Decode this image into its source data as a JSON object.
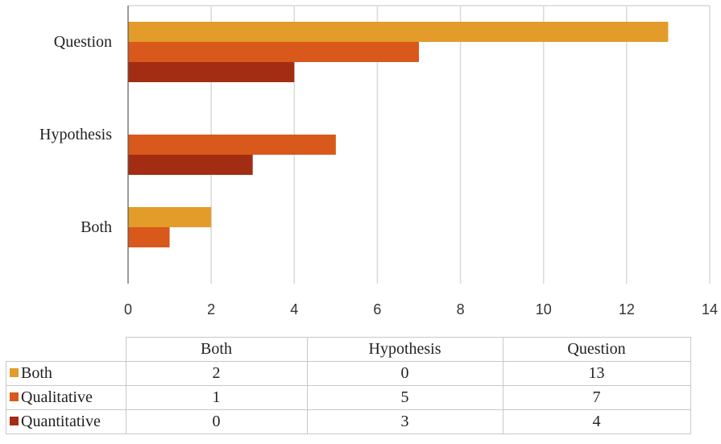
{
  "chart_data": {
    "type": "bar",
    "orientation": "horizontal",
    "categories": [
      "Both",
      "Hypothesis",
      "Question"
    ],
    "series": [
      {
        "name": "Both",
        "values": [
          2,
          0,
          13
        ],
        "color": "#E39B29"
      },
      {
        "name": "Qualitative",
        "values": [
          1,
          5,
          7
        ],
        "color": "#D9581B"
      },
      {
        "name": "Quantitative",
        "values": [
          0,
          3,
          4
        ],
        "color": "#A32D12"
      }
    ],
    "xlim": [
      0,
      14
    ],
    "xticks": [
      "0",
      "2",
      "4",
      "6",
      "8",
      "10",
      "12",
      "14"
    ],
    "grid": true,
    "legend": "data-table",
    "title": "",
    "xlabel": "",
    "ylabel": ""
  },
  "table": {
    "columns": [
      "Both",
      "Hypothesis",
      "Question"
    ],
    "rows": [
      {
        "label": "Both",
        "values": [
          "2",
          "0",
          "13"
        ]
      },
      {
        "label": "Qualitative",
        "values": [
          "1",
          "5",
          "7"
        ]
      },
      {
        "label": "Quantitative",
        "values": [
          "0",
          "3",
          "4"
        ]
      }
    ]
  }
}
